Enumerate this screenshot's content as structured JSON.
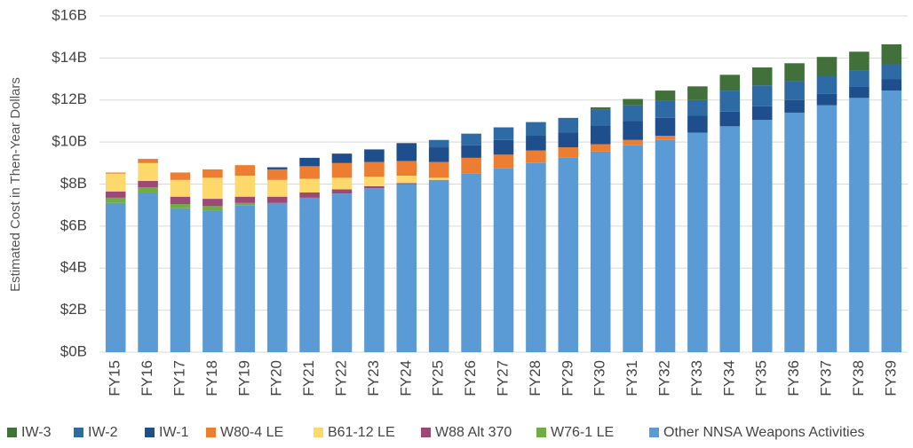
{
  "chart_data": {
    "type": "stacked_bar",
    "y_label": "Estimated Cost in Then-Year Dollars",
    "categories": [
      "FY15",
      "FY16",
      "FY17",
      "FY18",
      "FY19",
      "FY20",
      "FY21",
      "FY22",
      "FY23",
      "FY24",
      "FY25",
      "FY26",
      "FY27",
      "FY28",
      "FY29",
      "FY30",
      "FY31",
      "FY32",
      "FY33",
      "FY34",
      "FY35",
      "FY36",
      "FY37",
      "FY38",
      "FY39"
    ],
    "ylim": [
      0,
      16
    ],
    "yticks": [
      {
        "value": 0,
        "label": "$0B"
      },
      {
        "value": 2,
        "label": "$2B"
      },
      {
        "value": 4,
        "label": "$4B"
      },
      {
        "value": 6,
        "label": "$6B"
      },
      {
        "value": 8,
        "label": "$8B"
      },
      {
        "value": 10,
        "label": "$10B"
      },
      {
        "value": 12,
        "label": "$12B"
      },
      {
        "value": 14,
        "label": "$14B"
      },
      {
        "value": 16,
        "label": "$16B"
      }
    ],
    "grid": true,
    "legend": "bottom",
    "series": [
      {
        "name": "IW-3",
        "color": "#41703a",
        "values": [
          0,
          0,
          0,
          0,
          0,
          0,
          0,
          0,
          0,
          0,
          0,
          0,
          0,
          0,
          0,
          0.1,
          0.3,
          0.5,
          0.65,
          0.75,
          0.85,
          0.85,
          0.9,
          0.9,
          0.95
        ]
      },
      {
        "name": "IW-2",
        "color": "#2e6aa3",
        "values": [
          0,
          0,
          0,
          0,
          0,
          0,
          0,
          0,
          0,
          0,
          0.35,
          0.55,
          0.6,
          0.65,
          0.7,
          0.75,
          0.75,
          0.8,
          0.75,
          1.0,
          1.0,
          0.9,
          0.85,
          0.75,
          0.7
        ]
      },
      {
        "name": "IW-1",
        "color": "#1f4e8c",
        "values": [
          0,
          0,
          0,
          0,
          0,
          0.1,
          0.4,
          0.45,
          0.6,
          0.85,
          0.7,
          0.6,
          0.7,
          0.7,
          0.7,
          0.9,
          0.9,
          0.85,
          0.8,
          0.7,
          0.65,
          0.6,
          0.55,
          0.55,
          0.55
        ]
      },
      {
        "name": "W80-4 LE",
        "color": "#ed7d31",
        "values": [
          0.05,
          0.2,
          0.35,
          0.4,
          0.5,
          0.5,
          0.6,
          0.7,
          0.7,
          0.7,
          0.75,
          0.75,
          0.65,
          0.6,
          0.5,
          0.35,
          0.25,
          0.2,
          0,
          0,
          0,
          0,
          0,
          0,
          0
        ]
      },
      {
        "name": "B61-12 LE",
        "color": "#fdd86a",
        "values": [
          0.85,
          0.85,
          0.8,
          1.0,
          1.0,
          0.8,
          0.65,
          0.55,
          0.45,
          0.35,
          0.1,
          0,
          0,
          0,
          0,
          0,
          0,
          0,
          0,
          0,
          0,
          0,
          0,
          0,
          0
        ]
      },
      {
        "name": "W88 Alt 370",
        "color": "#9c4a75",
        "values": [
          0.3,
          0.3,
          0.35,
          0.35,
          0.3,
          0.3,
          0.25,
          0.2,
          0.1,
          0.05,
          0,
          0,
          0,
          0,
          0,
          0,
          0,
          0,
          0,
          0,
          0,
          0,
          0,
          0,
          0
        ]
      },
      {
        "name": "W76-1 LE",
        "color": "#70ad47",
        "values": [
          0.25,
          0.25,
          0.2,
          0.2,
          0.1,
          0,
          0,
          0,
          0,
          0,
          0,
          0,
          0,
          0,
          0,
          0,
          0,
          0,
          0,
          0,
          0,
          0,
          0,
          0,
          0
        ]
      },
      {
        "name": "Other NNSA Weapons Activities",
        "color": "#5b9bd5",
        "values": [
          7.1,
          7.6,
          6.85,
          6.75,
          7.0,
          7.1,
          7.35,
          7.55,
          7.8,
          8.0,
          8.2,
          8.5,
          8.75,
          9.0,
          9.25,
          9.55,
          9.85,
          10.1,
          10.45,
          10.75,
          11.05,
          11.4,
          11.75,
          12.1,
          12.45
        ]
      }
    ]
  }
}
